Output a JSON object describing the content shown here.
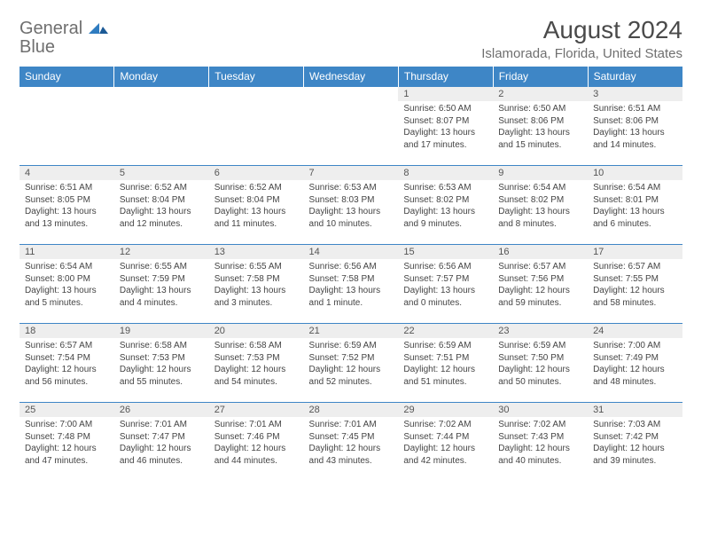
{
  "logo": {
    "text1": "General",
    "text2": "Blue"
  },
  "title": "August 2024",
  "location": "Islamorada, Florida, United States",
  "colors": {
    "header_bg": "#3e86c6",
    "header_text": "#ffffff",
    "daynum_bg": "#eeeeee",
    "border": "#3e86c6",
    "logo_grey": "#6f6f6f",
    "logo_blue": "#2f7cc0",
    "title_color": "#4a4a4a",
    "body_text": "#444444"
  },
  "daynames": [
    "Sunday",
    "Monday",
    "Tuesday",
    "Wednesday",
    "Thursday",
    "Friday",
    "Saturday"
  ],
  "weeks": [
    [
      {
        "n": "",
        "sunrise": "",
        "sunset": "",
        "d1": "",
        "d2": "",
        "empty": true
      },
      {
        "n": "",
        "sunrise": "",
        "sunset": "",
        "d1": "",
        "d2": "",
        "empty": true
      },
      {
        "n": "",
        "sunrise": "",
        "sunset": "",
        "d1": "",
        "d2": "",
        "empty": true
      },
      {
        "n": "",
        "sunrise": "",
        "sunset": "",
        "d1": "",
        "d2": "",
        "empty": true
      },
      {
        "n": "1",
        "sunrise": "Sunrise: 6:50 AM",
        "sunset": "Sunset: 8:07 PM",
        "d1": "Daylight: 13 hours",
        "d2": "and 17 minutes."
      },
      {
        "n": "2",
        "sunrise": "Sunrise: 6:50 AM",
        "sunset": "Sunset: 8:06 PM",
        "d1": "Daylight: 13 hours",
        "d2": "and 15 minutes."
      },
      {
        "n": "3",
        "sunrise": "Sunrise: 6:51 AM",
        "sunset": "Sunset: 8:06 PM",
        "d1": "Daylight: 13 hours",
        "d2": "and 14 minutes."
      }
    ],
    [
      {
        "n": "4",
        "sunrise": "Sunrise: 6:51 AM",
        "sunset": "Sunset: 8:05 PM",
        "d1": "Daylight: 13 hours",
        "d2": "and 13 minutes."
      },
      {
        "n": "5",
        "sunrise": "Sunrise: 6:52 AM",
        "sunset": "Sunset: 8:04 PM",
        "d1": "Daylight: 13 hours",
        "d2": "and 12 minutes."
      },
      {
        "n": "6",
        "sunrise": "Sunrise: 6:52 AM",
        "sunset": "Sunset: 8:04 PM",
        "d1": "Daylight: 13 hours",
        "d2": "and 11 minutes."
      },
      {
        "n": "7",
        "sunrise": "Sunrise: 6:53 AM",
        "sunset": "Sunset: 8:03 PM",
        "d1": "Daylight: 13 hours",
        "d2": "and 10 minutes."
      },
      {
        "n": "8",
        "sunrise": "Sunrise: 6:53 AM",
        "sunset": "Sunset: 8:02 PM",
        "d1": "Daylight: 13 hours",
        "d2": "and 9 minutes."
      },
      {
        "n": "9",
        "sunrise": "Sunrise: 6:54 AM",
        "sunset": "Sunset: 8:02 PM",
        "d1": "Daylight: 13 hours",
        "d2": "and 8 minutes."
      },
      {
        "n": "10",
        "sunrise": "Sunrise: 6:54 AM",
        "sunset": "Sunset: 8:01 PM",
        "d1": "Daylight: 13 hours",
        "d2": "and 6 minutes."
      }
    ],
    [
      {
        "n": "11",
        "sunrise": "Sunrise: 6:54 AM",
        "sunset": "Sunset: 8:00 PM",
        "d1": "Daylight: 13 hours",
        "d2": "and 5 minutes."
      },
      {
        "n": "12",
        "sunrise": "Sunrise: 6:55 AM",
        "sunset": "Sunset: 7:59 PM",
        "d1": "Daylight: 13 hours",
        "d2": "and 4 minutes."
      },
      {
        "n": "13",
        "sunrise": "Sunrise: 6:55 AM",
        "sunset": "Sunset: 7:58 PM",
        "d1": "Daylight: 13 hours",
        "d2": "and 3 minutes."
      },
      {
        "n": "14",
        "sunrise": "Sunrise: 6:56 AM",
        "sunset": "Sunset: 7:58 PM",
        "d1": "Daylight: 13 hours",
        "d2": "and 1 minute."
      },
      {
        "n": "15",
        "sunrise": "Sunrise: 6:56 AM",
        "sunset": "Sunset: 7:57 PM",
        "d1": "Daylight: 13 hours",
        "d2": "and 0 minutes."
      },
      {
        "n": "16",
        "sunrise": "Sunrise: 6:57 AM",
        "sunset": "Sunset: 7:56 PM",
        "d1": "Daylight: 12 hours",
        "d2": "and 59 minutes."
      },
      {
        "n": "17",
        "sunrise": "Sunrise: 6:57 AM",
        "sunset": "Sunset: 7:55 PM",
        "d1": "Daylight: 12 hours",
        "d2": "and 58 minutes."
      }
    ],
    [
      {
        "n": "18",
        "sunrise": "Sunrise: 6:57 AM",
        "sunset": "Sunset: 7:54 PM",
        "d1": "Daylight: 12 hours",
        "d2": "and 56 minutes."
      },
      {
        "n": "19",
        "sunrise": "Sunrise: 6:58 AM",
        "sunset": "Sunset: 7:53 PM",
        "d1": "Daylight: 12 hours",
        "d2": "and 55 minutes."
      },
      {
        "n": "20",
        "sunrise": "Sunrise: 6:58 AM",
        "sunset": "Sunset: 7:53 PM",
        "d1": "Daylight: 12 hours",
        "d2": "and 54 minutes."
      },
      {
        "n": "21",
        "sunrise": "Sunrise: 6:59 AM",
        "sunset": "Sunset: 7:52 PM",
        "d1": "Daylight: 12 hours",
        "d2": "and 52 minutes."
      },
      {
        "n": "22",
        "sunrise": "Sunrise: 6:59 AM",
        "sunset": "Sunset: 7:51 PM",
        "d1": "Daylight: 12 hours",
        "d2": "and 51 minutes."
      },
      {
        "n": "23",
        "sunrise": "Sunrise: 6:59 AM",
        "sunset": "Sunset: 7:50 PM",
        "d1": "Daylight: 12 hours",
        "d2": "and 50 minutes."
      },
      {
        "n": "24",
        "sunrise": "Sunrise: 7:00 AM",
        "sunset": "Sunset: 7:49 PM",
        "d1": "Daylight: 12 hours",
        "d2": "and 48 minutes."
      }
    ],
    [
      {
        "n": "25",
        "sunrise": "Sunrise: 7:00 AM",
        "sunset": "Sunset: 7:48 PM",
        "d1": "Daylight: 12 hours",
        "d2": "and 47 minutes."
      },
      {
        "n": "26",
        "sunrise": "Sunrise: 7:01 AM",
        "sunset": "Sunset: 7:47 PM",
        "d1": "Daylight: 12 hours",
        "d2": "and 46 minutes."
      },
      {
        "n": "27",
        "sunrise": "Sunrise: 7:01 AM",
        "sunset": "Sunset: 7:46 PM",
        "d1": "Daylight: 12 hours",
        "d2": "and 44 minutes."
      },
      {
        "n": "28",
        "sunrise": "Sunrise: 7:01 AM",
        "sunset": "Sunset: 7:45 PM",
        "d1": "Daylight: 12 hours",
        "d2": "and 43 minutes."
      },
      {
        "n": "29",
        "sunrise": "Sunrise: 7:02 AM",
        "sunset": "Sunset: 7:44 PM",
        "d1": "Daylight: 12 hours",
        "d2": "and 42 minutes."
      },
      {
        "n": "30",
        "sunrise": "Sunrise: 7:02 AM",
        "sunset": "Sunset: 7:43 PM",
        "d1": "Daylight: 12 hours",
        "d2": "and 40 minutes."
      },
      {
        "n": "31",
        "sunrise": "Sunrise: 7:03 AM",
        "sunset": "Sunset: 7:42 PM",
        "d1": "Daylight: 12 hours",
        "d2": "and 39 minutes."
      }
    ]
  ]
}
